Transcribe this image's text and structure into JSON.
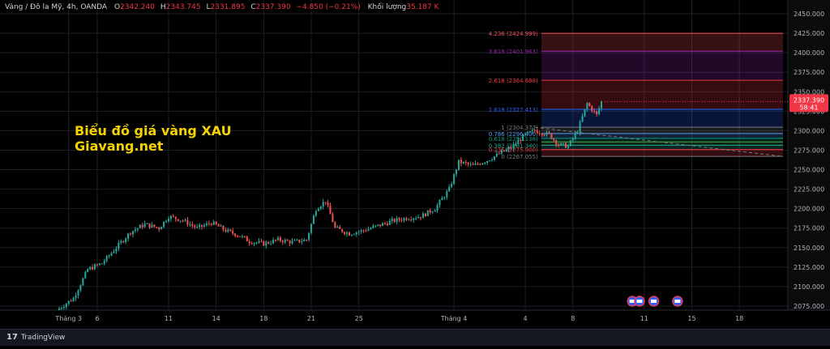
{
  "header": {
    "symbol": "Vàng / Đô la Mỹ, 4h, OANDA",
    "open_key": "O",
    "open": "2342.240",
    "high_key": "H",
    "high": "2343.745",
    "low_key": "L",
    "low": "2331.895",
    "close_key": "C",
    "close": "2337.390",
    "change": "−4.850 (−0.21%)",
    "volume_label": "Khối lượng",
    "volume": "35.187 K"
  },
  "overlay": {
    "line1": "Biểu đồ giá vàng XAU",
    "line2": "Giavang.net"
  },
  "price_tag": {
    "price": "2337.390",
    "countdown": "58:41"
  },
  "branding": {
    "logo": "17",
    "name": "TradingView"
  },
  "colors": {
    "up": "#26a69a",
    "down": "#ef5350",
    "accent_text": "#f5d300"
  },
  "chart_data": {
    "type": "candlestick",
    "title": "",
    "ylim": [
      2070,
      2460
    ],
    "y_ticks": [
      2075,
      2100,
      2125,
      2150,
      2175,
      2200,
      2225,
      2250,
      2275,
      2300,
      2325,
      2350,
      2375,
      2400,
      2425,
      2450
    ],
    "y_tick_labels": [
      "2075.000",
      "2100.000",
      "2125.000",
      "2150.000",
      "2175.000",
      "2200.000",
      "2225.000",
      "2250.000",
      "2275.000",
      "2300.000",
      "2325.000",
      "2350.000",
      "2375.000",
      "2400.000",
      "2425.000",
      "2450.000"
    ],
    "x_tick_labels": [
      {
        "label": "Tháng 3",
        "bar": 4
      },
      {
        "label": "6",
        "bar": 16
      },
      {
        "label": "11",
        "bar": 46
      },
      {
        "label": "14",
        "bar": 66
      },
      {
        "label": "18",
        "bar": 86
      },
      {
        "label": "21",
        "bar": 106
      },
      {
        "label": "25",
        "bar": 126
      },
      {
        "label": "Tháng 4",
        "bar": 166
      },
      {
        "label": "4",
        "bar": 196
      },
      {
        "label": "8",
        "bar": 216
      },
      {
        "label": "11",
        "bar": 246
      },
      {
        "label": "15",
        "bar": 266
      },
      {
        "label": "18",
        "bar": 286
      }
    ],
    "events": [
      {
        "bar": 241
      },
      {
        "bar": 244
      },
      {
        "bar": 250
      },
      {
        "bar": 260
      }
    ],
    "keypoints": [
      [
        0,
        2072
      ],
      [
        6,
        2085
      ],
      [
        12,
        2122
      ],
      [
        18,
        2130
      ],
      [
        24,
        2150
      ],
      [
        30,
        2170
      ],
      [
        36,
        2180
      ],
      [
        42,
        2175
      ],
      [
        46,
        2190
      ],
      [
        52,
        2185
      ],
      [
        58,
        2175
      ],
      [
        64,
        2182
      ],
      [
        70,
        2172
      ],
      [
        76,
        2165
      ],
      [
        80,
        2158
      ],
      [
        86,
        2155
      ],
      [
        92,
        2160
      ],
      [
        98,
        2157
      ],
      [
        104,
        2160
      ],
      [
        108,
        2200
      ],
      [
        112,
        2210
      ],
      [
        116,
        2175
      ],
      [
        122,
        2168
      ],
      [
        128,
        2172
      ],
      [
        134,
        2178
      ],
      [
        140,
        2184
      ],
      [
        146,
        2188
      ],
      [
        152,
        2190
      ],
      [
        158,
        2200
      ],
      [
        164,
        2225
      ],
      [
        168,
        2260
      ],
      [
        174,
        2255
      ],
      [
        180,
        2262
      ],
      [
        186,
        2272
      ],
      [
        190,
        2278
      ],
      [
        196,
        2295
      ],
      [
        200,
        2300
      ],
      [
        206,
        2295
      ],
      [
        210,
        2282
      ],
      [
        214,
        2280
      ],
      [
        218,
        2300
      ],
      [
        222,
        2335
      ],
      [
        226,
        2320
      ],
      [
        228,
        2337.39
      ]
    ],
    "n_bars": 229,
    "fibonacci": {
      "levels": [
        {
          "ratio": "4.236",
          "price": 2424.999,
          "label": "4.236 (2424.999)",
          "color": "#f7525f"
        },
        {
          "ratio": "3.618",
          "price": 2401.963,
          "label": "3.618 (2401.963)",
          "color": "#9c27b0"
        },
        {
          "ratio": "2.618",
          "price": 2364.688,
          "label": "2.618 (2364.688)",
          "color": "#f23645"
        },
        {
          "ratio": "1.618",
          "price": 2327.413,
          "label": "1.618 (2327.413)",
          "color": "#2962ff"
        },
        {
          "ratio": "1",
          "price": 2304.377,
          "label": "1 (2304.377)",
          "color": "#787b86"
        },
        {
          "ratio": "0.786",
          "price": 2296.4,
          "label": "0.786 (2296.400)",
          "color": "#5b9cf6"
        },
        {
          "ratio": "0.618",
          "price": 2290.138,
          "label": "0.618 (2290.138)",
          "color": "#089981"
        },
        {
          "ratio": "0.5",
          "price": 2285.659,
          "label": "",
          "color": "#4caf50"
        },
        {
          "ratio": "0.382",
          "price": 2281.34,
          "label": "0.382 (2281.340)",
          "color": "#22ab94"
        },
        {
          "ratio": "0.236",
          "price": 2275.9,
          "label": "0.236 (2275.900)",
          "color": "#f23645"
        },
        {
          "ratio": "0",
          "price": 2267.055,
          "label": "0 (2267.055)",
          "color": "#787b86"
        }
      ],
      "start_bar": 200,
      "end_bar": 287
    }
  }
}
